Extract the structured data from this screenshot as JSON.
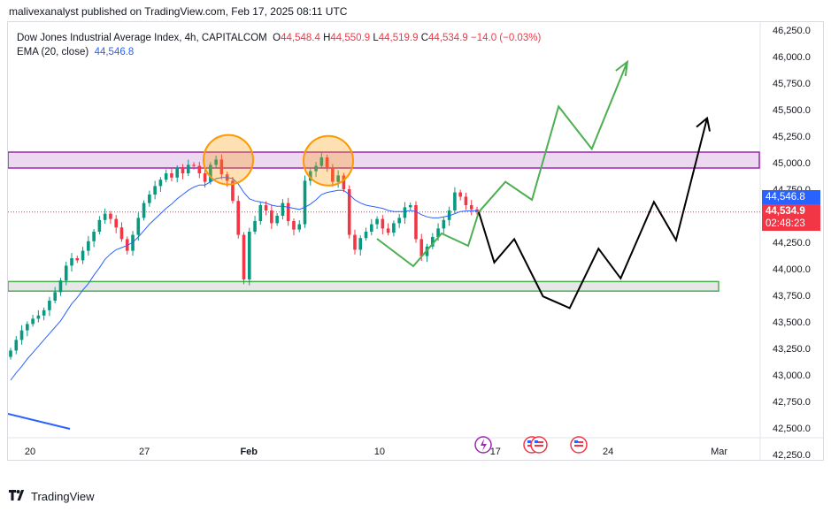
{
  "caption": "malivexanalyst published on TradingView.com, Feb 17, 2025 08:11 UTC",
  "legend": {
    "symbol": "Dow Jones Industrial Average Index, 4h, CAPITALCOM",
    "o_label": "O",
    "o_value": "44,548.4",
    "h_label": "H",
    "h_value": "44,550.9",
    "l_label": "L",
    "l_value": "44,519.9",
    "c_label": "C",
    "c_value": "44,534.9",
    "change": "−14.0 (−0.03%)",
    "ema_label": "EMA (20, close)",
    "ema_value": "44,546.8"
  },
  "price_tags": {
    "ema": "44,546.8",
    "close": "44,534.9",
    "countdown": "02:48:23"
  },
  "logo_text": "TradingView",
  "chart_data": {
    "type": "candlestick",
    "symbol": "Dow Jones Industrial Average Index",
    "timeframe": "4h",
    "y_ticks": [
      "46,250.0",
      "46,000.0",
      "45,750.0",
      "45,500.0",
      "45,250.0",
      "45,000.0",
      "44,750.0",
      "44,500.0",
      "44,250.0",
      "44,000.0",
      "43,750.0",
      "43,500.0",
      "43,250.0",
      "43,000.0",
      "42,750.0",
      "42,500.0",
      "42,250.0"
    ],
    "ylim": [
      42250,
      46250
    ],
    "x_ticks": [
      "20",
      "27",
      "Feb",
      "10",
      "17",
      "24",
      "Mar"
    ],
    "resistance_zone": [
      44950,
      45100
    ],
    "support_zone": [
      43790,
      43880
    ],
    "colors": {
      "up": "#089981",
      "down": "#f23645",
      "ema": "#2962ff",
      "resistance": "#9c27b0",
      "support": "#4caf50",
      "bull_path": "#4caf50",
      "bear_path": "#000000",
      "circle": "#ff9800"
    },
    "close_series": [
      43230,
      43330,
      43420,
      43480,
      43530,
      43560,
      43610,
      43700,
      43780,
      43890,
      44030,
      44100,
      44080,
      44170,
      44260,
      44350,
      44460,
      44520,
      44470,
      44390,
      44280,
      44170,
      44320,
      44480,
      44620,
      44700,
      44780,
      44840,
      44900,
      44860,
      44950,
      44900,
      44980,
      44970,
      44900,
      44820,
      44980,
      45030,
      44890,
      44830,
      44640,
      44320,
      43900,
      44350,
      44450,
      44600,
      44550,
      44430,
      44500,
      44620,
      44450,
      44370,
      44420,
      44830,
      44920,
      44970,
      45050,
      44950,
      44820,
      44880,
      44750,
      44320,
      44180,
      44290,
      44350,
      44420,
      44470,
      44380,
      44340,
      44430,
      44480,
      44580,
      44600,
      44280,
      44120,
      44210,
      44300,
      44380,
      44460,
      44550,
      44720,
      44680,
      44600,
      44560,
      44534.9
    ],
    "ema_series": [
      42950,
      43020,
      43080,
      43150,
      43210,
      43270,
      43330,
      43390,
      43450,
      43510,
      43590,
      43670,
      43730,
      43800,
      43860,
      43940,
      44010,
      44090,
      44140,
      44180,
      44200,
      44220,
      44250,
      44300,
      44360,
      44420,
      44470,
      44520,
      44570,
      44610,
      44660,
      44700,
      44740,
      44770,
      44790,
      44790,
      44820,
      44850,
      44860,
      44860,
      44850,
      44800,
      44720,
      44660,
      44640,
      44630,
      44620,
      44600,
      44590,
      44590,
      44580,
      44570,
      44560,
      44580,
      44610,
      44650,
      44700,
      44720,
      44730,
      44740,
      44740,
      44700,
      44650,
      44620,
      44600,
      44590,
      44580,
      44570,
      44550,
      44540,
      44540,
      44540,
      44550,
      44540,
      44510,
      44490,
      44480,
      44480,
      44490,
      44500,
      44520,
      44540,
      44545,
      44546,
      44546.8
    ],
    "bullish_projection": [
      [
        17.1,
        44534.9
      ],
      [
        18.3,
        44820
      ],
      [
        19.5,
        44650
      ],
      [
        20.7,
        45530
      ],
      [
        22.2,
        45130
      ],
      [
        23.8,
        45950
      ]
    ],
    "bearish_projection": [
      [
        17.1,
        44534.9
      ],
      [
        17.8,
        44060
      ],
      [
        18.7,
        44280
      ],
      [
        20.0,
        43740
      ],
      [
        21.2,
        43630
      ],
      [
        22.5,
        44190
      ],
      [
        23.5,
        43910
      ],
      [
        25.0,
        44630
      ],
      [
        26.0,
        44270
      ],
      [
        27.4,
        45420
      ]
    ],
    "marked_highs": [
      [
        3.9,
        45020
      ],
      [
        9.1,
        45010
      ]
    ],
    "event_icons": [
      "lightning-icon",
      "us-flag-icon",
      "us-flag-icon"
    ]
  }
}
